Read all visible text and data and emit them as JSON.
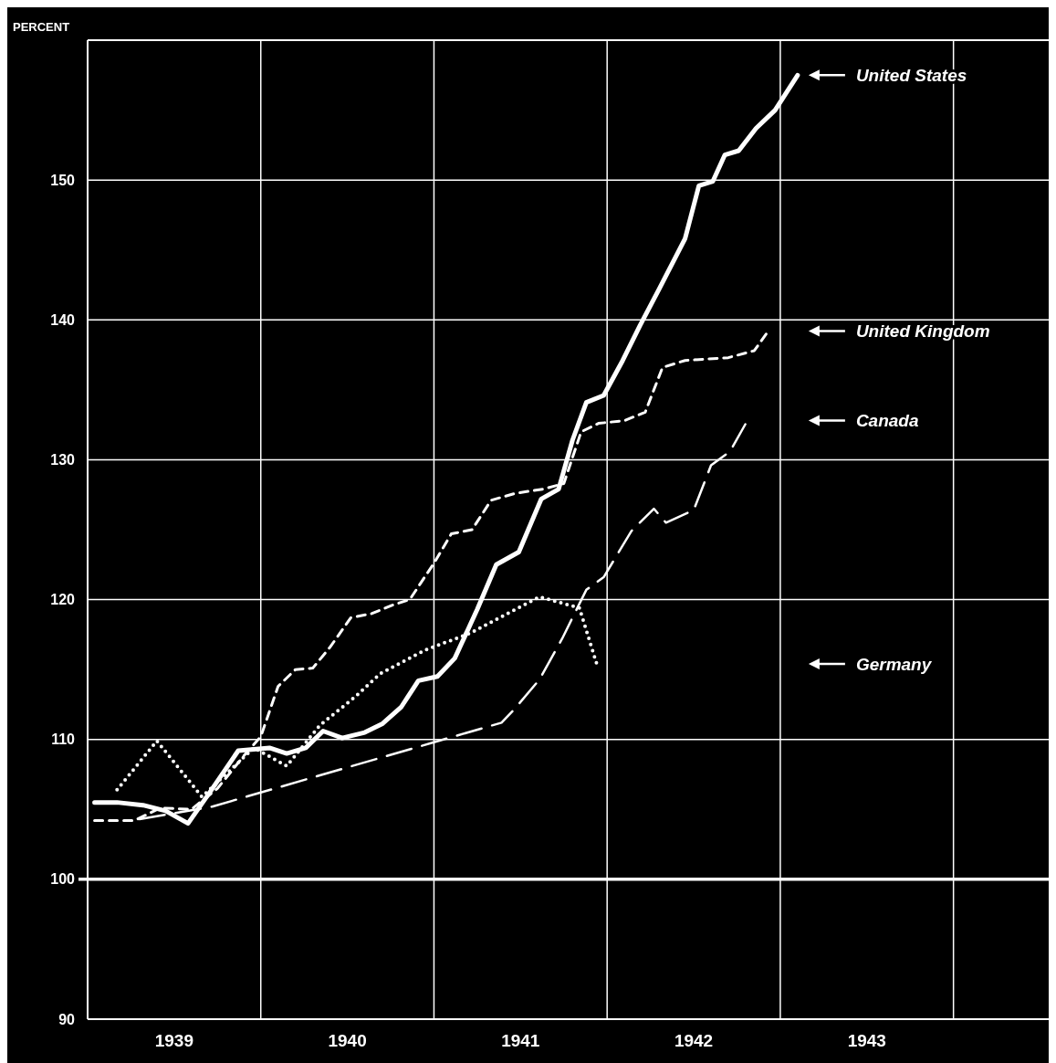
{
  "chart_data": {
    "type": "line",
    "ylabel": "PERCENT",
    "xlim": [
      1939,
      1944.55
    ],
    "ylim": [
      90,
      160
    ],
    "xticks": [
      {
        "value": 1940,
        "label": null
      },
      {
        "value": 1941,
        "label": null
      },
      {
        "value": 1942,
        "label": null
      },
      {
        "value": 1943,
        "label": null
      },
      {
        "value": 1944,
        "label": null
      },
      {
        "value": 1939.5,
        "label": "1939"
      },
      {
        "value": 1940.5,
        "label": "1940"
      },
      {
        "value": 1941.5,
        "label": "1941"
      },
      {
        "value": 1942.5,
        "label": "1942"
      },
      {
        "value": 1943.5,
        "label": "1943"
      }
    ],
    "yticks": [
      90,
      100,
      110,
      120,
      130,
      140,
      150
    ],
    "grid": true,
    "legend": "right",
    "marker": "none",
    "ref_lines": [
      {
        "axis": "y",
        "value": 100
      }
    ],
    "series": [
      {
        "name": "United States",
        "color": "#ffffff",
        "line_style": "solid",
        "x": [
          1939.04,
          1939.17,
          1939.32,
          1939.45,
          1939.58,
          1939.71,
          1939.87,
          1940.05,
          1940.15,
          1940.26,
          1940.36,
          1940.47,
          1940.6,
          1940.7,
          1940.81,
          1940.91,
          1941.02,
          1941.12,
          1941.25,
          1941.36,
          1941.49,
          1941.62,
          1941.72,
          1941.8,
          1941.88,
          1941.98,
          1942.09,
          1942.19,
          1942.3,
          1942.45,
          1942.53,
          1942.61,
          1942.68,
          1942.76,
          1942.86,
          1942.97,
          1943.1
        ],
        "values": [
          105.5,
          105.5,
          105.3,
          104.9,
          104.0,
          106.3,
          109.2,
          109.4,
          109.0,
          109.4,
          110.6,
          110.1,
          110.5,
          111.1,
          112.3,
          114.2,
          114.5,
          115.8,
          119.3,
          122.5,
          123.4,
          127.2,
          127.9,
          131.4,
          134.1,
          134.6,
          137.1,
          139.6,
          142.2,
          145.8,
          149.6,
          149.9,
          151.8,
          152.1,
          153.7,
          155.0,
          157.5
        ]
      },
      {
        "name": "United Kingdom",
        "color": "#ffffff",
        "line_style": "dashed",
        "x": [
          1939.04,
          1939.27,
          1939.42,
          1939.6,
          1939.75,
          1939.9,
          1940.0,
          1940.1,
          1940.2,
          1940.3,
          1940.4,
          1940.52,
          1940.64,
          1940.76,
          1940.86,
          1941.0,
          1941.1,
          1941.22,
          1941.33,
          1941.47,
          1941.63,
          1941.75,
          1941.85,
          1941.95,
          1942.1,
          1942.22,
          1942.32,
          1942.45,
          1942.7,
          1942.85,
          1942.93
        ],
        "values": [
          104.2,
          104.2,
          105.1,
          105.0,
          106.5,
          108.8,
          110.2,
          113.8,
          115.0,
          115.1,
          116.6,
          118.7,
          119.0,
          119.6,
          120.0,
          122.6,
          124.7,
          125.0,
          127.1,
          127.6,
          127.9,
          128.3,
          132.0,
          132.6,
          132.8,
          133.4,
          136.6,
          137.1,
          137.3,
          137.8,
          139.2
        ]
      },
      {
        "name": "Canada",
        "color": "#ffffff",
        "line_style": "longdash",
        "x": [
          1939.3,
          1939.72,
          1941.0,
          1941.39,
          1941.46,
          1941.61,
          1941.74,
          1941.88,
          1941.98,
          1942.14,
          1942.27,
          1942.34,
          1942.5,
          1942.6,
          1942.71,
          1942.81
        ],
        "values": [
          104.3,
          105.2,
          109.8,
          111.2,
          112.1,
          114.3,
          117.2,
          120.7,
          121.6,
          124.9,
          126.5,
          125.5,
          126.4,
          129.6,
          130.6,
          132.8
        ]
      },
      {
        "name": "Germany",
        "color": "#ffffff",
        "line_style": "dotted",
        "x": [
          1939.17,
          1939.4,
          1939.66,
          1939.96,
          1940.15,
          1940.34,
          1940.55,
          1940.69,
          1940.95,
          1941.21,
          1941.47,
          1941.61,
          1941.84,
          1941.94
        ],
        "values": [
          106.4,
          109.9,
          105.9,
          109.4,
          108.1,
          111.0,
          113.1,
          114.7,
          116.4,
          117.6,
          119.3,
          120.2,
          119.4,
          115.4
        ]
      }
    ]
  }
}
